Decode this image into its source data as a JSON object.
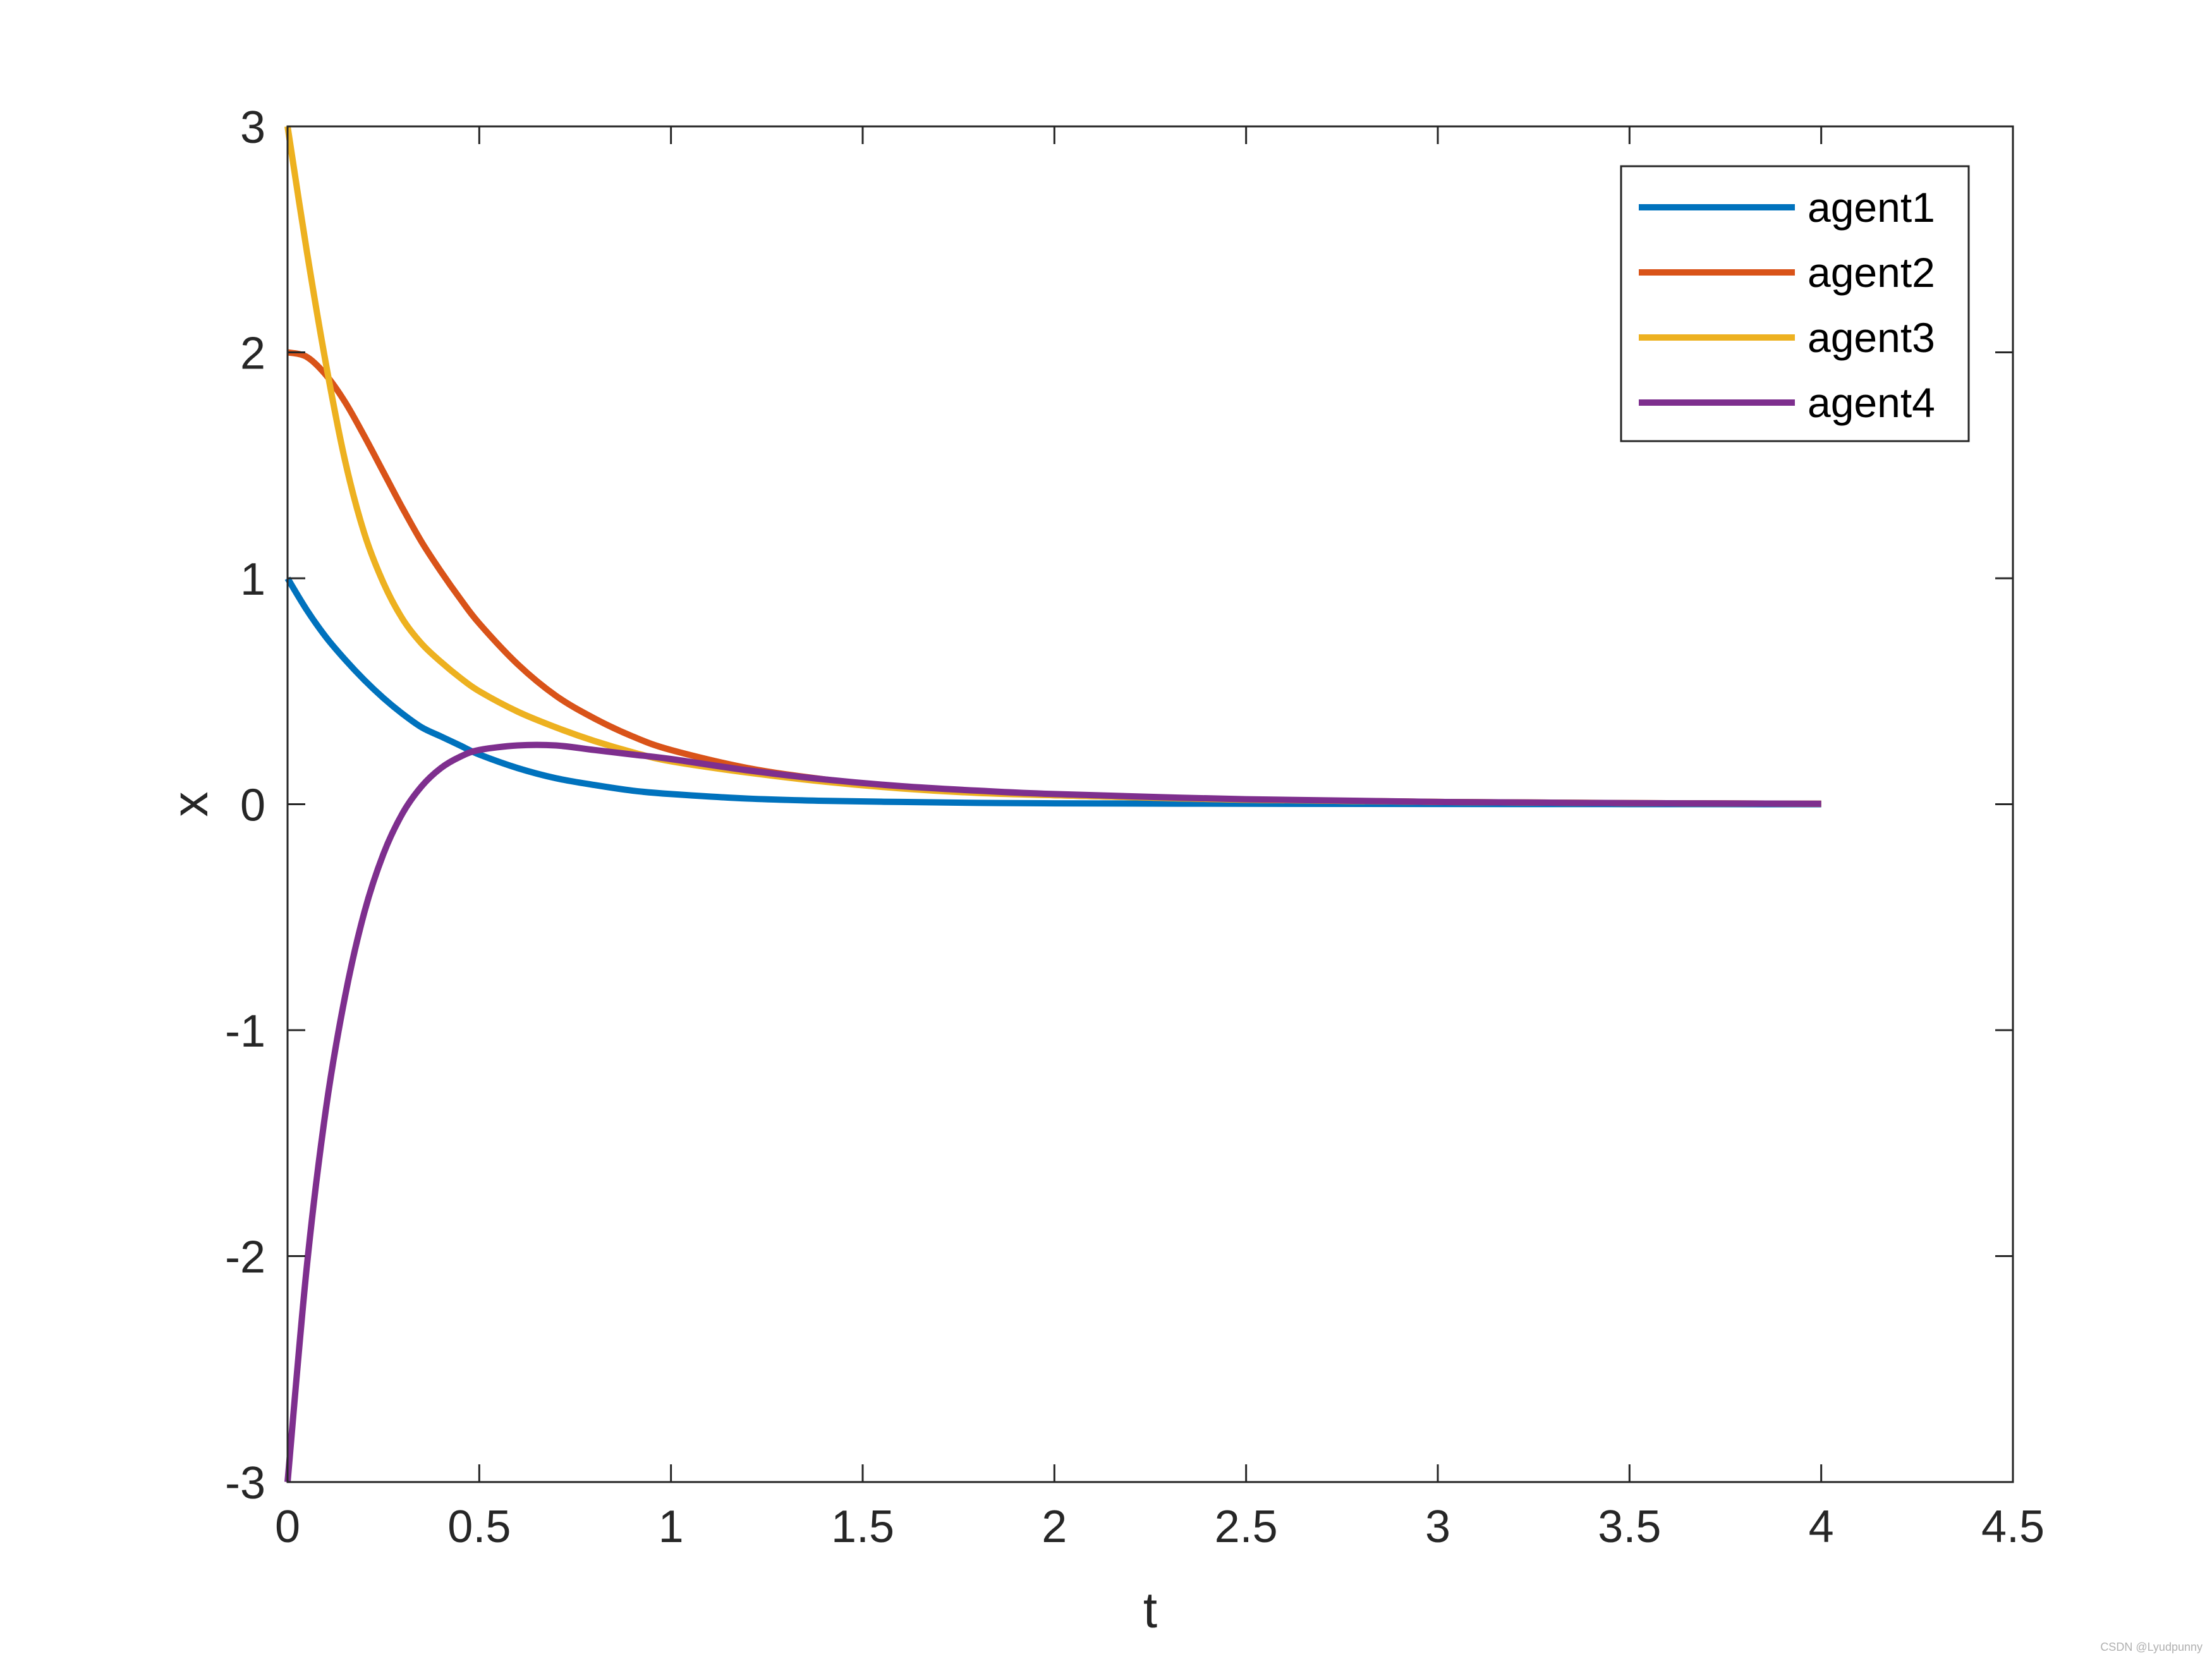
{
  "chart_data": {
    "type": "line",
    "xlabel": "t",
    "ylabel": "x",
    "xlim": [
      0,
      4.5
    ],
    "ylim": [
      -3,
      3
    ],
    "xticks": [
      "0",
      "0.5",
      "1",
      "1.5",
      "2",
      "2.5",
      "3",
      "3.5",
      "4",
      "4.5"
    ],
    "yticks": [
      "-3",
      "-2",
      "-1",
      "0",
      "1",
      "2",
      "3"
    ],
    "grid": false,
    "legend_position": "top-right",
    "x": [
      0,
      0.05,
      0.1,
      0.15,
      0.2,
      0.25,
      0.3,
      0.35,
      0.4,
      0.45,
      0.5,
      0.6,
      0.7,
      0.8,
      0.9,
      1.0,
      1.2,
      1.4,
      1.6,
      1.8,
      2.0,
      2.5,
      3.0,
      3.5,
      4.0
    ],
    "series": [
      {
        "name": "agent1",
        "color": "#0072BD",
        "values": [
          1.0,
          0.86,
          0.74,
          0.64,
          0.55,
          0.47,
          0.4,
          0.34,
          0.3,
          0.26,
          0.22,
          0.16,
          0.115,
          0.085,
          0.06,
          0.045,
          0.025,
          0.015,
          0.01,
          0.006,
          0.004,
          0.002,
          0.001,
          0.0005,
          0.0
        ]
      },
      {
        "name": "agent2",
        "color": "#D95319",
        "values": [
          2.0,
          1.98,
          1.9,
          1.78,
          1.63,
          1.47,
          1.31,
          1.16,
          1.03,
          0.91,
          0.8,
          0.62,
          0.48,
          0.38,
          0.3,
          0.24,
          0.16,
          0.11,
          0.075,
          0.055,
          0.04,
          0.02,
          0.01,
          0.005,
          0.002
        ]
      },
      {
        "name": "agent3",
        "color": "#EDB120",
        "values": [
          3.0,
          2.45,
          1.95,
          1.52,
          1.2,
          0.98,
          0.82,
          0.71,
          0.63,
          0.56,
          0.5,
          0.41,
          0.34,
          0.28,
          0.23,
          0.19,
          0.14,
          0.1,
          0.07,
          0.05,
          0.04,
          0.02,
          0.01,
          0.005,
          0.002
        ]
      },
      {
        "name": "agent4",
        "color": "#7E2F8E",
        "values": [
          -3.0,
          -2.05,
          -1.35,
          -0.85,
          -0.48,
          -0.22,
          -0.04,
          0.08,
          0.16,
          0.21,
          0.24,
          0.26,
          0.26,
          0.24,
          0.22,
          0.2,
          0.15,
          0.11,
          0.08,
          0.06,
          0.045,
          0.022,
          0.01,
          0.005,
          0.002
        ]
      }
    ]
  },
  "watermark": "CSDN @Lyudpunny"
}
